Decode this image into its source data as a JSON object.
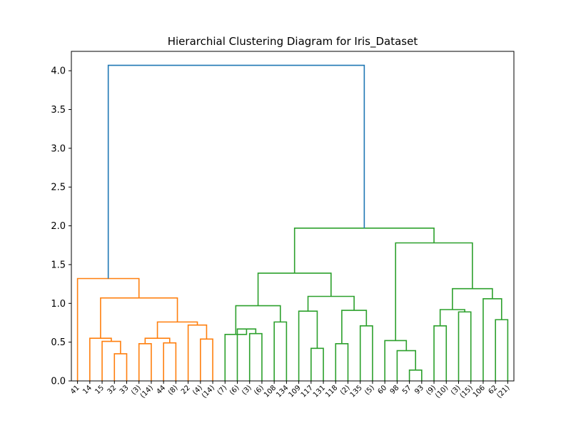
{
  "chart_data": {
    "type": "dendrogram",
    "title": "Hierarchial Clustering Diagram for Iris_Dataset",
    "xlabel": "",
    "ylabel": "",
    "ylim": [
      0,
      4.25
    ],
    "yticks": [
      "0.0",
      "0.5",
      "1.0",
      "1.5",
      "2.0",
      "2.5",
      "3.0",
      "3.5",
      "4.0"
    ],
    "grid": false,
    "leaf_labels": [
      "41",
      "14",
      "15",
      "32",
      "33",
      "(3)",
      "(14)",
      "44",
      "(8)",
      "22",
      "(4)",
      "(14)",
      "(7)",
      "(6)",
      "(3)",
      "(6)",
      "108",
      "134",
      "109",
      "117",
      "131",
      "118",
      "(2)",
      "135",
      "(5)",
      "60",
      "98",
      "57",
      "93",
      "(9)",
      "(10)",
      "(3)",
      "(15)",
      "106",
      "62",
      "(21)"
    ],
    "colors": {
      "cluster_1": "#ff7f0e",
      "cluster_2": "#2ca02c",
      "above_threshold": "#1f77b4"
    },
    "merges": [
      {
        "left": 3,
        "right": 4,
        "height": 0.35,
        "color": "#ff7f0e"
      },
      {
        "left": 2,
        "right": 36,
        "height": 0.51,
        "color": "#ff7f0e"
      },
      {
        "left": 1,
        "right": 37,
        "height": 0.55,
        "color": "#ff7f0e"
      },
      {
        "left": 5,
        "right": 6,
        "height": 0.48,
        "color": "#ff7f0e"
      },
      {
        "left": 7,
        "right": 8,
        "height": 0.49,
        "color": "#ff7f0e"
      },
      {
        "left": 39,
        "right": 40,
        "height": 0.55,
        "color": "#ff7f0e"
      },
      {
        "left": 10,
        "right": 11,
        "height": 0.54,
        "color": "#ff7f0e"
      },
      {
        "left": 9,
        "right": 42,
        "height": 0.72,
        "color": "#ff7f0e"
      },
      {
        "left": 41,
        "right": 43,
        "height": 0.76,
        "color": "#ff7f0e"
      },
      {
        "left": 38,
        "right": 44,
        "height": 1.07,
        "color": "#ff7f0e"
      },
      {
        "left": 0,
        "right": 45,
        "height": 1.32,
        "color": "#ff7f0e"
      },
      {
        "left": 14,
        "right": 15,
        "height": 0.61,
        "color": "#2ca02c"
      },
      {
        "left": 13,
        "right": 47,
        "height": 0.67,
        "color": "#2ca02c"
      },
      {
        "left": 12,
        "right": 48,
        "height": 0.6,
        "color": "#2ca02c"
      },
      {
        "left": 16,
        "right": 17,
        "height": 0.76,
        "color": "#2ca02c"
      },
      {
        "left": 49,
        "right": 50,
        "height": 0.97,
        "color": "#2ca02c"
      },
      {
        "left": 19,
        "right": 20,
        "height": 0.42,
        "color": "#2ca02c"
      },
      {
        "left": 18,
        "right": 52,
        "height": 0.9,
        "color": "#2ca02c"
      },
      {
        "left": 21,
        "right": 22,
        "height": 0.48,
        "color": "#2ca02c"
      },
      {
        "left": 23,
        "right": 24,
        "height": 0.71,
        "color": "#2ca02c"
      },
      {
        "left": 54,
        "right": 55,
        "height": 0.91,
        "color": "#2ca02c"
      },
      {
        "left": 53,
        "right": 56,
        "height": 1.09,
        "color": "#2ca02c"
      },
      {
        "left": 51,
        "right": 57,
        "height": 1.39,
        "color": "#2ca02c"
      },
      {
        "left": 27,
        "right": 28,
        "height": 0.14,
        "color": "#2ca02c"
      },
      {
        "left": 26,
        "right": 59,
        "height": 0.39,
        "color": "#2ca02c"
      },
      {
        "left": 25,
        "right": 60,
        "height": 0.52,
        "color": "#2ca02c"
      },
      {
        "left": 29,
        "right": 30,
        "height": 0.71,
        "color": "#2ca02c"
      },
      {
        "left": 31,
        "right": 32,
        "height": 0.89,
        "color": "#2ca02c"
      },
      {
        "left": 62,
        "right": 63,
        "height": 0.92,
        "color": "#2ca02c"
      },
      {
        "left": 34,
        "right": 35,
        "height": 0.79,
        "color": "#2ca02c"
      },
      {
        "left": 33,
        "right": 65,
        "height": 1.06,
        "color": "#2ca02c"
      },
      {
        "left": 64,
        "right": 66,
        "height": 1.19,
        "color": "#2ca02c"
      },
      {
        "left": 61,
        "right": 67,
        "height": 1.78,
        "color": "#2ca02c"
      },
      {
        "left": 58,
        "right": 68,
        "height": 1.97,
        "color": "#2ca02c"
      },
      {
        "left": 46,
        "right": 69,
        "height": 4.07,
        "color": "#1f77b4"
      }
    ]
  }
}
